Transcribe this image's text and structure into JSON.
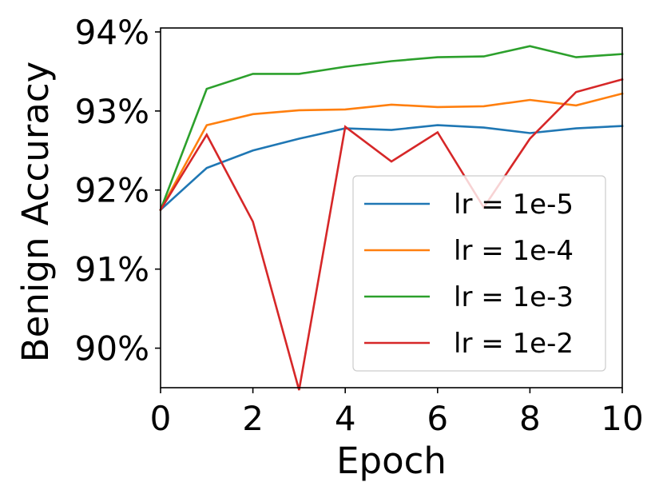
{
  "chart_data": {
    "type": "line",
    "xlabel": "Epoch",
    "ylabel": "Benign Accuracy",
    "xlim": [
      0,
      10
    ],
    "ylim": [
      89.5,
      94.05
    ],
    "xticks": [
      0,
      2,
      4,
      6,
      8,
      10
    ],
    "xtick_labels": [
      "0",
      "2",
      "4",
      "6",
      "8",
      "10"
    ],
    "yticks": [
      90,
      91,
      92,
      93,
      94
    ],
    "ytick_labels": [
      "90%",
      "91%",
      "92%",
      "93%",
      "94%"
    ],
    "grid": false,
    "legend_position": "lower-right",
    "x": [
      0,
      1,
      2,
      3,
      4,
      5,
      6,
      7,
      8,
      9,
      10
    ],
    "series": [
      {
        "name": "lr = 1e-5",
        "color": "#1f77b4",
        "values": [
          91.75,
          92.28,
          92.5,
          92.65,
          92.78,
          92.76,
          92.82,
          92.79,
          92.72,
          92.78,
          92.81
        ]
      },
      {
        "name": "lr = 1e-4",
        "color": "#ff7f0e",
        "values": [
          91.75,
          92.82,
          92.96,
          93.01,
          93.02,
          93.08,
          93.05,
          93.06,
          93.14,
          93.07,
          93.22
        ]
      },
      {
        "name": "lr = 1e-3",
        "color": "#2ca02c",
        "values": [
          91.75,
          93.28,
          93.47,
          93.47,
          93.56,
          93.63,
          93.68,
          93.69,
          93.82,
          93.68,
          93.72
        ]
      },
      {
        "name": "lr = 1e-2",
        "color": "#d62728",
        "values": [
          91.75,
          92.7,
          91.6,
          89.47,
          92.8,
          92.36,
          92.73,
          91.78,
          92.65,
          93.24,
          93.4
        ]
      }
    ]
  }
}
